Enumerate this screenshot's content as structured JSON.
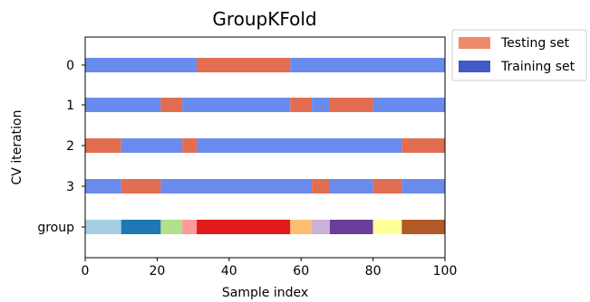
{
  "chart_data": {
    "type": "bar",
    "title": "GroupKFold",
    "xlabel": "Sample index",
    "ylabel": "CV iteration",
    "xlim": [
      0,
      100
    ],
    "x_ticks": [
      "0",
      "20",
      "40",
      "60",
      "80",
      "100"
    ],
    "y_ticks": [
      "0",
      "1",
      "2",
      "3",
      "group"
    ],
    "legend": {
      "placement": "outside-top-right",
      "entries": [
        {
          "label": "Testing set",
          "color": "#ef8a6b"
        },
        {
          "label": "Training set",
          "color": "#4259c8"
        }
      ]
    },
    "series_colors": {
      "testing": "#e26d50",
      "training": "#6a8bee"
    },
    "folds": [
      {
        "name": "0",
        "segments": [
          {
            "start": 0,
            "end": 31,
            "set": "training"
          },
          {
            "start": 31,
            "end": 57,
            "set": "testing"
          },
          {
            "start": 57,
            "end": 100,
            "set": "training"
          }
        ]
      },
      {
        "name": "1",
        "segments": [
          {
            "start": 0,
            "end": 21,
            "set": "training"
          },
          {
            "start": 21,
            "end": 27,
            "set": "testing"
          },
          {
            "start": 27,
            "end": 57,
            "set": "training"
          },
          {
            "start": 57,
            "end": 63,
            "set": "testing"
          },
          {
            "start": 63,
            "end": 68,
            "set": "training"
          },
          {
            "start": 68,
            "end": 80,
            "set": "testing"
          },
          {
            "start": 80,
            "end": 100,
            "set": "training"
          }
        ]
      },
      {
        "name": "2",
        "segments": [
          {
            "start": 0,
            "end": 10,
            "set": "testing"
          },
          {
            "start": 10,
            "end": 27,
            "set": "training"
          },
          {
            "start": 27,
            "end": 31,
            "set": "testing"
          },
          {
            "start": 31,
            "end": 88,
            "set": "training"
          },
          {
            "start": 88,
            "end": 100,
            "set": "testing"
          }
        ]
      },
      {
        "name": "3",
        "segments": [
          {
            "start": 0,
            "end": 10,
            "set": "training"
          },
          {
            "start": 10,
            "end": 21,
            "set": "testing"
          },
          {
            "start": 21,
            "end": 63,
            "set": "training"
          },
          {
            "start": 63,
            "end": 68,
            "set": "testing"
          },
          {
            "start": 68,
            "end": 80,
            "set": "training"
          },
          {
            "start": 80,
            "end": 88,
            "set": "testing"
          },
          {
            "start": 88,
            "end": 100,
            "set": "training"
          }
        ]
      }
    ],
    "groups": [
      {
        "start": 0,
        "end": 10,
        "color": "#a6cee3"
      },
      {
        "start": 10,
        "end": 21,
        "color": "#1f78b4"
      },
      {
        "start": 21,
        "end": 27,
        "color": "#b2df8a"
      },
      {
        "start": 27,
        "end": 31,
        "color": "#fb9a99"
      },
      {
        "start": 31,
        "end": 57,
        "color": "#e31a1c"
      },
      {
        "start": 57,
        "end": 63,
        "color": "#fdbf6f"
      },
      {
        "start": 63,
        "end": 68,
        "color": "#cab2d6"
      },
      {
        "start": 68,
        "end": 80,
        "color": "#6a3d9a"
      },
      {
        "start": 80,
        "end": 88,
        "color": "#ffff99"
      },
      {
        "start": 88,
        "end": 100,
        "color": "#b15928"
      }
    ]
  }
}
